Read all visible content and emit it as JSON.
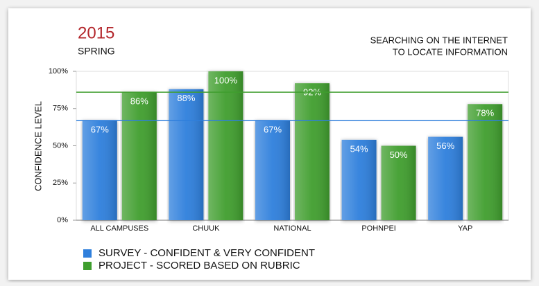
{
  "chart_data": {
    "type": "bar",
    "year": "2015",
    "subtitle": "SPRING",
    "title": [
      "SEARCHING ON THE INTERNET",
      "TO LOCATE INFORMATION"
    ],
    "y_label": "CONFIDENCE LEVEL",
    "categories": [
      "ALL CAMPUSES",
      "CHUUK",
      "NATIONAL",
      "POHNPEI",
      "YAP"
    ],
    "series": [
      {
        "name": "SURVEY - CONFIDENT & VERY CONFIDENT",
        "color": "#2f7fdc",
        "values": [
          67,
          88,
          67,
          54,
          56
        ],
        "value_labels": [
          "67%",
          "88%",
          "67%",
          "54%",
          "56%"
        ]
      },
      {
        "name": "PROJECT - SCORED BASED ON RUBRIC",
        "color": "#3f9e2e",
        "values": [
          86,
          100,
          92,
          50,
          78
        ],
        "value_labels": [
          "86%",
          "100%",
          "92%",
          "50%",
          "78%"
        ]
      }
    ],
    "ylim": [
      0,
      100
    ],
    "yticks": [
      {
        "value": 0,
        "label": "0%"
      },
      {
        "value": 25,
        "label": "25%"
      },
      {
        "value": 50,
        "label": "50%"
      },
      {
        "value": 75,
        "label": "75%"
      },
      {
        "value": 100,
        "label": "100%"
      }
    ],
    "grid": false,
    "legend": "bottom"
  }
}
